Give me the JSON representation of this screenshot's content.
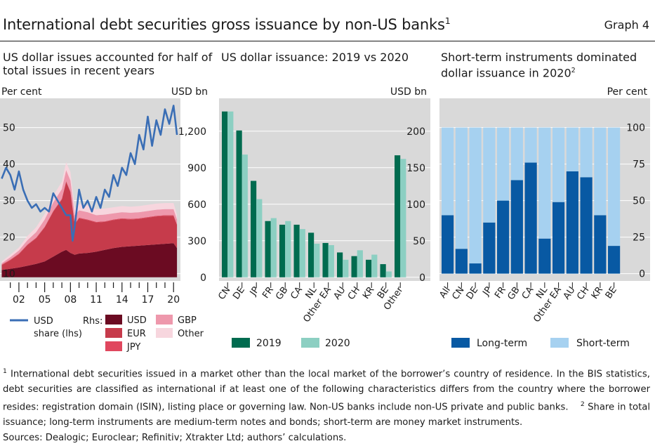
{
  "header": {
    "title": "International debt securities gross issuance by non-US banks",
    "title_sup": "1",
    "graph_label": "Graph 4"
  },
  "colors": {
    "usd_line": "#3a6eb5",
    "usd_area": "#6b0b22",
    "eur_area": "#c63b4b",
    "jpy_area": "#e0475e",
    "gbp_area": "#ee98ac",
    "other_area": "#f7d6de",
    "y2019": "#006b4f",
    "y2020": "#8ccfc2",
    "long_term": "#0859a3",
    "short_term": "#a6d1f0",
    "plot_bg": "#d9d9d9"
  },
  "panels": {
    "left": {
      "title": "US dollar issues accounted for half of total issues in recent years"
    },
    "mid": {
      "title": "US dollar issuance: 2019 vs 2020"
    },
    "right": {
      "title": "Short-term instruments dominated dollar issuance in 2020",
      "title_sup": "2"
    }
  },
  "chart_data": [
    {
      "type": "area",
      "title": "US dollar issues accounted for half of total issues in recent years",
      "ylabel_left": "Per cent",
      "ylabel_right": "USD bn",
      "ylim_left": [
        8,
        58
      ],
      "ylim_right": [
        -30,
        1470
      ],
      "yticks_left": [
        10,
        20,
        30,
        40,
        50
      ],
      "yticks_right": [
        0,
        300,
        600,
        900,
        1200
      ],
      "ytick_labels_right": [
        "0",
        "300",
        "600",
        "900",
        "1,200"
      ],
      "xlim": [
        1999.8,
        2020.8
      ],
      "xticks": [
        2002,
        2005,
        2008,
        2011,
        2014,
        2017,
        2020
      ],
      "xtick_labels": [
        "02",
        "05",
        "08",
        "11",
        "14",
        "17",
        "20"
      ],
      "stack_x": [
        2000,
        2001,
        2002,
        2003,
        2004,
        2005,
        2006,
        2007,
        2007.5,
        2008,
        2008.5,
        2009,
        2010,
        2011,
        2012,
        2013,
        2014,
        2015,
        2016,
        2017,
        2018,
        2019,
        2020,
        2020.4
      ],
      "series": [
        {
          "name": "USD",
          "axis": "rhs",
          "values": [
            60,
            70,
            80,
            95,
            110,
            130,
            170,
            210,
            225,
            200,
            185,
            195,
            200,
            210,
            225,
            240,
            250,
            255,
            260,
            265,
            270,
            275,
            280,
            240
          ]
        },
        {
          "name": "EUR",
          "axis": "rhs",
          "values": [
            40,
            70,
            110,
            170,
            210,
            280,
            370,
            430,
            560,
            500,
            250,
            290,
            270,
            240,
            230,
            230,
            230,
            220,
            220,
            225,
            230,
            230,
            225,
            190
          ]
        },
        {
          "name": "JPY",
          "axis": "rhs",
          "values": [
            5,
            5,
            5,
            5,
            5,
            5,
            5,
            5,
            5,
            5,
            5,
            5,
            5,
            5,
            5,
            5,
            5,
            5,
            5,
            5,
            5,
            5,
            5,
            5
          ]
        },
        {
          "name": "GBP",
          "axis": "rhs",
          "values": [
            10,
            20,
            25,
            35,
            45,
            60,
            70,
            80,
            90,
            90,
            70,
            60,
            60,
            55,
            55,
            50,
            50,
            50,
            50,
            50,
            50,
            50,
            50,
            40
          ]
        },
        {
          "name": "Other",
          "axis": "rhs",
          "values": [
            15,
            20,
            25,
            35,
            40,
            45,
            55,
            60,
            65,
            70,
            60,
            50,
            55,
            50,
            50,
            50,
            50,
            50,
            50,
            50,
            50,
            50,
            50,
            40
          ]
        }
      ],
      "line": {
        "name": "USD share (lhs)",
        "axis": "lhs",
        "x": [
          2000,
          2000.5,
          2001,
          2001.5,
          2002,
          2002.5,
          2003,
          2003.5,
          2004,
          2004.5,
          2005,
          2005.5,
          2006,
          2006.5,
          2007,
          2007.5,
          2008,
          2008.25,
          2008.5,
          2009,
          2009.5,
          2010,
          2010.5,
          2011,
          2011.5,
          2012,
          2012.5,
          2013,
          2013.5,
          2014,
          2014.5,
          2015,
          2015.5,
          2016,
          2016.5,
          2017,
          2017.5,
          2018,
          2018.5,
          2019,
          2019.5,
          2020,
          2020.4
        ],
        "values": [
          36,
          39,
          37,
          33,
          38,
          33,
          30,
          28,
          29,
          27,
          28,
          27,
          32,
          30,
          28,
          26,
          26,
          19,
          23,
          33,
          28,
          30,
          27,
          31,
          28,
          33,
          31,
          37,
          34,
          39,
          37,
          43,
          40,
          48,
          44,
          53,
          45,
          52,
          48,
          55,
          51,
          56,
          48
        ]
      },
      "legend": [
        {
          "key": "line",
          "label": "USD",
          "label2": "share (lhs)"
        },
        {
          "key": "rhs_label",
          "label": "Rhs:"
        },
        {
          "key": "usd",
          "label": "USD"
        },
        {
          "key": "eur",
          "label": "EUR"
        },
        {
          "key": "jpy",
          "label": "JPY"
        },
        {
          "key": "gbp",
          "label": "GBP"
        },
        {
          "key": "other",
          "label": "Other"
        }
      ]
    },
    {
      "type": "bar",
      "title": "US dollar issuance: 2019 vs 2020",
      "ylabel": "USD bn",
      "ylim": [
        -5,
        245
      ],
      "yticks": [
        0,
        50,
        100,
        150,
        200
      ],
      "categories": [
        "CN",
        "DE",
        "JP",
        "FR",
        "GB",
        "CA",
        "NL",
        "Other EA",
        "AU",
        "CH",
        "KR",
        "BE",
        "Other"
      ],
      "series": [
        {
          "name": "2019",
          "values": [
            227,
            201,
            132,
            77,
            72,
            72,
            61,
            47,
            34,
            29,
            24,
            18,
            167
          ]
        },
        {
          "name": "2020",
          "values": [
            227,
            168,
            107,
            81,
            77,
            66,
            46,
            44,
            24,
            37,
            31,
            8,
            162
          ]
        }
      ]
    },
    {
      "type": "bar",
      "stacked": true,
      "title": "Short-term instruments dominated dollar issuance in 2020",
      "ylabel": "Per cent",
      "ylim": [
        -5,
        120
      ],
      "yticks": [
        0,
        25,
        50,
        75,
        100
      ],
      "categories": [
        "All",
        "CN",
        "DE",
        "JP",
        "FR",
        "GB",
        "CA",
        "NL",
        "Other EA",
        "AU",
        "CH",
        "KR",
        "BE"
      ],
      "series": [
        {
          "name": "Long-term",
          "values": [
            40,
            17,
            7,
            35,
            50,
            64,
            76,
            24,
            49,
            70,
            66,
            40,
            19
          ]
        },
        {
          "name": "Short-term",
          "values": [
            60,
            83,
            93,
            65,
            50,
            36,
            24,
            76,
            51,
            30,
            34,
            60,
            81
          ]
        }
      ]
    }
  ],
  "legends": {
    "mid": [
      {
        "label": "2019"
      },
      {
        "label": "2020"
      }
    ],
    "right": [
      {
        "label": "Long-term"
      },
      {
        "label": "Short-term"
      }
    ]
  },
  "footnote": {
    "n1": "1",
    "text1": "International debt securities issued in a market other than the local market of the borrower’s country of residence. In the BIS statistics, debt securities are classified as international if at least one of the following characteristics differs from the country where the borrower resides: registration domain (ISIN), listing place or governing law. Non-US banks include non-US private and public banks.",
    "n2": "2",
    "text2": "Share in total issuance; long-term instruments are medium-term notes and bonds; short-term are money market instruments."
  },
  "sources": "Sources: Dealogic; Euroclear; Refinitiv; Xtrakter Ltd; authors’ calculations."
}
